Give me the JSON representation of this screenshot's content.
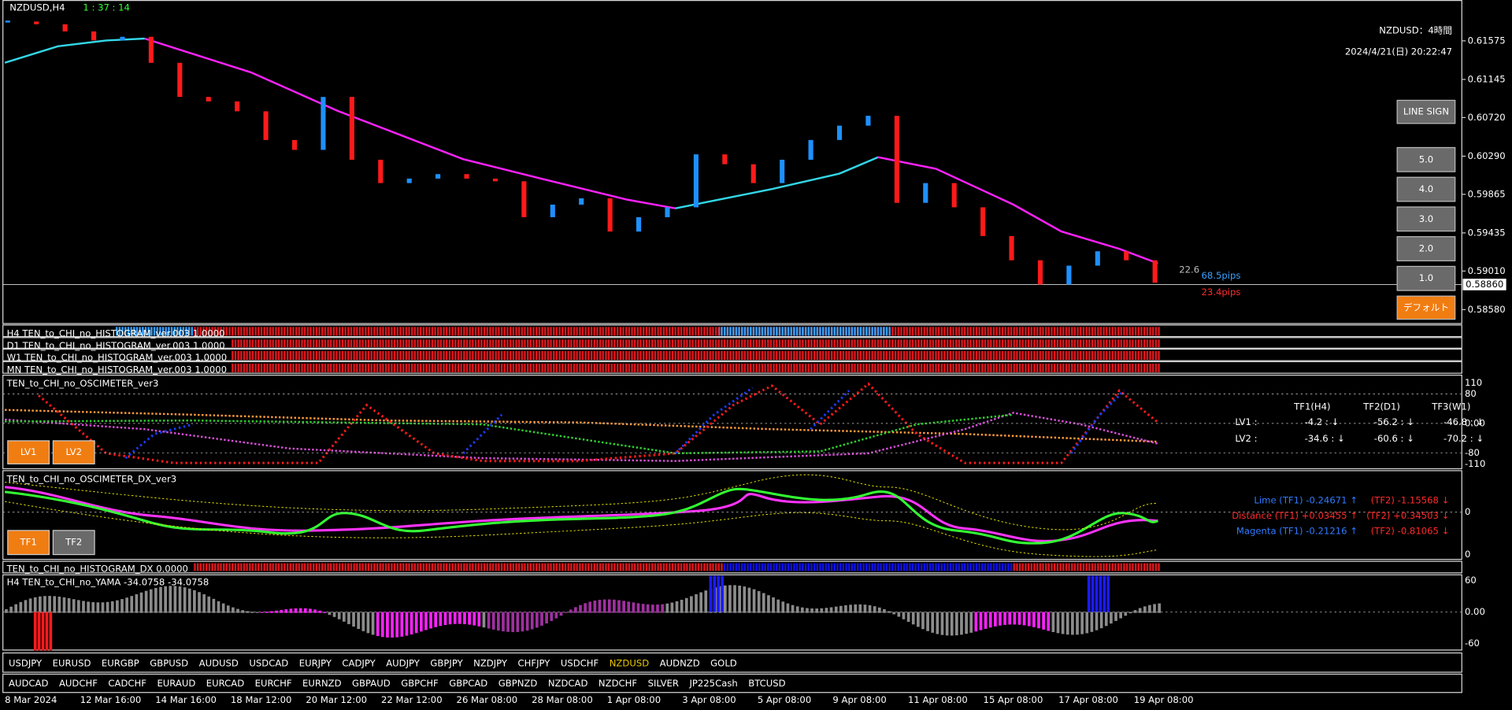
{
  "header": {
    "symbol_tf": "NZDUSD,H4",
    "timer": "1 : 37 : 14",
    "title": "NZDUSD：4時間",
    "datetime": "2024/4/21(日) 20:22:47"
  },
  "chart_data": {
    "type": "line",
    "values": [
      0.6179,
      0.6176,
      0.6168,
      0.6158,
      0.6162,
      0.6133,
      0.6095,
      0.609,
      0.6079,
      0.6047,
      0.6036,
      0.6095,
      0.6025,
      0.5999,
      0.6004,
      0.6009,
      0.6004,
      0.6001,
      0.5961,
      0.5975,
      0.5982,
      0.5945,
      0.5961,
      0.5972,
      0.6031,
      0.602,
      0.5999,
      0.6025,
      0.6047,
      0.6063,
      0.6074,
      0.5977,
      0.5999,
      0.5972,
      0.594,
      0.5913,
      0.5886,
      0.5907,
      0.5923,
      0.5913,
      0.5888
    ],
    "up_color": "#1e90ff",
    "down_color": "#ff1a1a",
    "ylim": [
      0.5843,
      0.6203
    ],
    "yticks": [
      0.61575,
      0.61145,
      {
        "value": 0.6072,
        "label": "0.60720"
      },
      {
        "value": 0.6029,
        "label": "0.60290"
      },
      0.59865,
      0.59435,
      {
        "value": 0.5901,
        "label": "0.59010"
      },
      {
        "value": 0.5858,
        "label": "0.58580"
      }
    ],
    "current_price": {
      "value": 0.5886,
      "label": "0.58860"
    },
    "x_axis_labels": [
      "8 Mar 2024",
      "12 Mar 16:00",
      "14 Mar 16:00",
      "18 Mar 12:00",
      "20 Mar 12:00",
      "22 Mar 12:00",
      "26 Mar 08:00",
      "28 Mar 08:00",
      "1 Apr 08:00",
      "3 Apr 08:00",
      "5 Apr 08:00",
      "9 Apr 08:00",
      "11 Apr 08:00",
      "15 Apr 08:00",
      "17 Apr 08:00",
      "19 Apr 08:00"
    ]
  },
  "side_buttons": [
    "LINE SIGN",
    "5.0",
    "4.0",
    "3.0",
    "2.0",
    "1.0",
    "デフォルト"
  ],
  "pips": {
    "spread": "22.6",
    "upper": "68.5pips",
    "lower": "23.4pips"
  },
  "histograms": [
    "H4 TEN_to_CHI_no_HISTOGRAM_ver.003 1.0000",
    "D1 TEN_to_CHI_no_HISTOGRAM_ver.003 1.0000",
    "W1 TEN_to_CHI_no_HISTOGRAM_ver.003 1.0000",
    "MN TEN_to_CHI_no_HISTOGRAM_ver.003 1.0000"
  ],
  "oscimeter": {
    "title": "TEN_to_CHI_no_OSCIMETER_ver3",
    "ylim": [
      -110,
      110
    ],
    "yticks": [
      110,
      80,
      {
        "value": 0,
        "label": "0.00"
      },
      -80,
      -110
    ],
    "buttons": [
      "LV1",
      "LV2"
    ],
    "table": {
      "header": [
        "TF1(H4)",
        "TF2(D1)",
        "TF3(W1)"
      ],
      "rows": [
        [
          "LV1 :",
          "-4.2 : ↓",
          "-56.2 : ↓",
          "-46.8 : ↓"
        ],
        [
          "LV2 :",
          "-34.6 : ↓",
          "-60.6 : ↓",
          "-70.2 : ↓"
        ]
      ]
    }
  },
  "dx": {
    "title": "TEN_to_CHI_no_OSCIMETER_DX_ver3",
    "axis_labels": [
      "0",
      "0"
    ],
    "readouts": [
      [
        "Lime (TF1) -0.24671 ↑",
        "(TF2) -1.15568 ↓"
      ],
      [
        "Distance (TF1) +0.03455 ↑",
        "(TF2) +0.34503 ↓"
      ],
      [
        "Magenta (TF1) -0.21216 ↑",
        "(TF2) -0.81065 ↓"
      ]
    ],
    "buttons": [
      "TF1",
      "TF2"
    ]
  },
  "histogram_dx": "TEN_to_CHI_no_HISTOGRAM_DX 0.0000",
  "yama": {
    "title": "H4  TEN_to_CHI_no_YAMA -34.0758 -34.0758",
    "ylim": [
      -60,
      60
    ],
    "yticks": [
      60,
      {
        "value": 0,
        "label": "0.00"
      },
      -60
    ]
  },
  "symbols": {
    "row1": [
      "USDJPY",
      "EURUSD",
      "EURGBP",
      "GBPUSD",
      "AUDUSD",
      "USDCAD",
      "EURJPY",
      "CADJPY",
      "AUDJPY",
      "GBPJPY",
      "NZDJPY",
      "CHFJPY",
      "USDCHF",
      "NZDUSD",
      "AUDNZD",
      "GOLD"
    ],
    "row2": [
      "AUDCAD",
      "AUDCHF",
      "CADCHF",
      "EURAUD",
      "EURCAD",
      "EURCHF",
      "EURNZD",
      "GBPAUD",
      "GBPCHF",
      "GBPCAD",
      "GBPNZD",
      "NZDCAD",
      "NZDCHF",
      "SILVER",
      "JP225Cash",
      "BTCUSD"
    ],
    "active_row1_index": 13
  }
}
